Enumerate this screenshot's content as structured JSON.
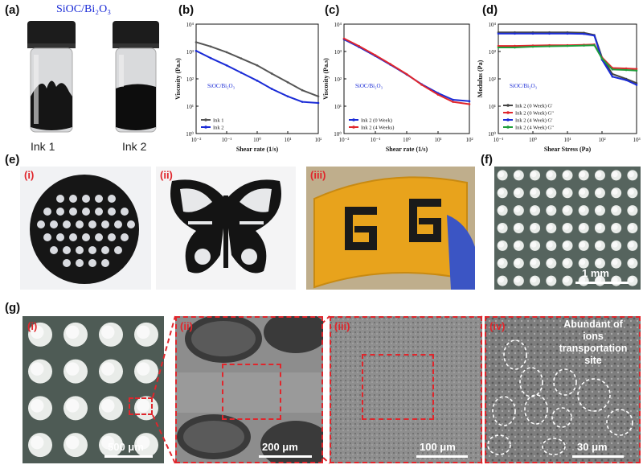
{
  "panels": {
    "a": {
      "label": "(a)",
      "title": "SiOC/Bi₂O₃",
      "ink1": "Ink 1",
      "ink2": "Ink 2"
    },
    "b": {
      "label": "(b)"
    },
    "c": {
      "label": "(c)"
    },
    "d": {
      "label": "(d)"
    },
    "e": {
      "label": "(e)",
      "sub_i": "(i)",
      "sub_ii": "(ii)",
      "sub_iii": "(iii)"
    },
    "f": {
      "label": "(f)",
      "scale": "1 mm"
    },
    "g": {
      "label": "(g)",
      "sub_i": "(i)",
      "sub_ii": "(ii)",
      "sub_iii": "(iii)",
      "sub_iv": "(iv)",
      "scale_i": "500 μm",
      "scale_ii": "200 μm",
      "scale_iii": "100 μm",
      "scale_iv": "30 μm",
      "annotation": [
        "Abundant of",
        "ions",
        "transportation",
        "site"
      ]
    }
  },
  "colors": {
    "ink1": "#555555",
    "ink2": "#1a2bd6",
    "red": "#e0262c",
    "green": "#1e9e3a",
    "blue": "#1a2bd6",
    "accent_red": "#e0262c",
    "amber": "#e8a31c"
  },
  "chart_data": [
    {
      "type": "line",
      "panel": "b",
      "xscale": "log",
      "yscale": "log",
      "xlabel": "Shear rate (1/s)",
      "ylabel": "Viscosity (Pa.s)",
      "xlim": [
        0.01,
        100
      ],
      "ylim": [
        1,
        100000
      ],
      "xticks": [
        "10⁻²",
        "10⁻¹",
        "10⁰",
        "10¹",
        "10²"
      ],
      "yticks": [
        "10⁰",
        "10¹",
        "10²",
        "10³",
        "10⁴"
      ],
      "annotation": "SiOC/Bi₂O₃",
      "legend_position": "bottom-left",
      "series": [
        {
          "name": "Ink 1",
          "color": "#555555",
          "x": [
            0.01,
            0.03,
            0.1,
            0.3,
            1,
            3,
            10,
            30,
            100
          ],
          "y": [
            15000,
            9500,
            5200,
            2700,
            1300,
            550,
            220,
            95,
            50
          ]
        },
        {
          "name": "Ink 2",
          "color": "#1a2bd6",
          "x": [
            0.01,
            0.03,
            0.1,
            0.3,
            1,
            3,
            10,
            30,
            100
          ],
          "y": [
            6000,
            2800,
            1300,
            600,
            260,
            110,
            50,
            28,
            25
          ]
        }
      ]
    },
    {
      "type": "line",
      "panel": "c",
      "xscale": "log",
      "yscale": "log",
      "xlabel": "Shear rate (1/s)",
      "ylabel": "Viscosity (Pa.s)",
      "xlim": [
        0.01,
        100
      ],
      "ylim": [
        1,
        100000
      ],
      "xticks": [
        "10⁻²",
        "10⁻¹",
        "10⁰",
        "10¹",
        "10²"
      ],
      "yticks": [
        "10⁰",
        "10¹",
        "10²",
        "10³",
        "10⁴"
      ],
      "annotation": "SiOC/Bi₂O₃",
      "legend_position": "bottom-left",
      "series": [
        {
          "name": "Ink 2 (0 Week)",
          "color": "#1a2bd6",
          "x": [
            0.01,
            0.03,
            0.1,
            0.3,
            1,
            3,
            10,
            30,
            100
          ],
          "y": [
            20000,
            9000,
            3500,
            1400,
            500,
            180,
            70,
            35,
            30
          ]
        },
        {
          "name": "Ink 2 (4 Weeks)",
          "color": "#e0262c",
          "x": [
            0.01,
            0.03,
            0.1,
            0.3,
            1,
            3,
            10,
            30,
            100
          ],
          "y": [
            22000,
            10000,
            3800,
            1500,
            520,
            170,
            60,
            28,
            22
          ]
        }
      ]
    },
    {
      "type": "line",
      "panel": "d",
      "xscale": "log",
      "yscale": "log",
      "xlabel": "Shear Stress (Pa)",
      "ylabel": "Modulus (Pa)",
      "xlim": [
        0.1,
        1000
      ],
      "ylim": [
        1,
        10000
      ],
      "xticks": [
        "10⁻¹",
        "10⁰",
        "10¹",
        "10²",
        "10³"
      ],
      "yticks": [
        "10⁰",
        "10¹",
        "10²",
        "10³",
        "10⁴"
      ],
      "annotation": "SiOC/Bi₂O₃",
      "legend_position": "bottom-left",
      "series": [
        {
          "name": "Ink 2 (0 Week) G'",
          "color": "#444444",
          "x": [
            0.1,
            0.3,
            1,
            3,
            10,
            30,
            60,
            100,
            200,
            500,
            1000
          ],
          "y": [
            5000,
            5000,
            5000,
            5000,
            5000,
            4800,
            4000,
            600,
            150,
            100,
            70
          ]
        },
        {
          "name": "Ink 2 (0 Week) G\"",
          "color": "#e0262c",
          "x": [
            0.1,
            0.3,
            1,
            3,
            10,
            30,
            60,
            100,
            200,
            500,
            1000
          ],
          "y": [
            1600,
            1600,
            1650,
            1700,
            1700,
            1750,
            1800,
            600,
            250,
            240,
            230
          ]
        },
        {
          "name": "Ink 2 (4 Week) G'",
          "color": "#1a2bd6",
          "x": [
            0.1,
            0.3,
            1,
            3,
            10,
            30,
            60,
            100,
            200,
            500,
            1000
          ],
          "y": [
            4500,
            4500,
            4500,
            4500,
            4500,
            4400,
            3800,
            500,
            120,
            90,
            60
          ]
        },
        {
          "name": "Ink 2 (4 Week) G\"",
          "color": "#1e9e3a",
          "x": [
            0.1,
            0.3,
            1,
            3,
            10,
            30,
            60,
            100,
            200,
            500,
            1000
          ],
          "y": [
            1400,
            1400,
            1500,
            1550,
            1600,
            1650,
            1700,
            550,
            220,
            210,
            200
          ]
        }
      ]
    }
  ]
}
